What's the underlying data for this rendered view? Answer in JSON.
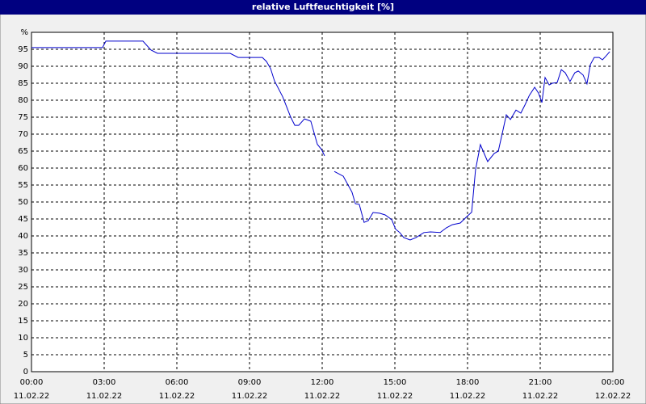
{
  "chart_data": {
    "type": "line",
    "title": "relative Luftfeuchtigkeit [%]",
    "x": [
      0,
      2.93,
      3.07,
      4.6,
      4.93,
      5.2,
      8.2,
      8.53,
      9.53,
      9.7,
      9.87,
      10.03,
      10.37,
      10.7,
      10.87,
      11.03,
      11.27,
      11.53,
      11.8,
      11.97,
      12.1,
      12.3,
      12.5,
      12.87,
      13.23,
      13.37,
      13.53,
      13.73,
      13.9,
      14.1,
      14.37,
      14.6,
      14.87,
      15.03,
      15.2,
      15.37,
      15.63,
      15.87,
      16.2,
      16.47,
      16.87,
      17.13,
      17.37,
      17.7,
      17.97,
      18.17,
      18.33,
      18.53,
      18.83,
      19.1,
      19.27,
      19.47,
      19.6,
      19.77,
      20,
      20.2,
      20.37,
      20.55,
      20.77,
      20.93,
      21.07,
      21.2,
      21.37,
      21.5,
      21.7,
      21.87,
      22.03,
      22.23,
      22.43,
      22.57,
      22.77,
      22.93,
      23.07,
      23.23,
      23.43,
      23.57,
      23.7,
      23.87
    ],
    "series": [
      {
        "color": "#0000cc",
        "values": [
          95.5,
          95.5,
          97.4,
          97.4,
          94.8,
          93.8,
          93.8,
          92.6,
          92.6,
          91.4,
          89.3,
          85.7,
          81,
          75,
          72.6,
          72.6,
          74.5,
          73.8,
          67,
          65.5,
          63.6,
          null,
          59,
          57.6,
          52.9,
          49.5,
          49.3,
          44,
          44.5,
          46.9,
          46.7,
          46.2,
          44.8,
          42,
          41,
          39.5,
          38.8,
          39.5,
          41,
          41.2,
          41,
          42.4,
          43.3,
          43.8,
          45.7,
          47,
          59.5,
          66.9,
          61.9,
          64.3,
          65,
          71.4,
          75.7,
          74.3,
          77.1,
          76.2,
          78.6,
          81.4,
          83.8,
          82.1,
          79.3,
          86.7,
          84.5,
          85,
          85.2,
          89,
          88.1,
          85.5,
          88.1,
          88.6,
          87.4,
          84.8,
          90.5,
          92.6,
          92.6,
          91.9,
          92.9,
          94.3
        ]
      }
    ],
    "xlim": [
      0,
      24
    ],
    "xticks": [
      {
        "value": 0,
        "label": "00:00"
      },
      {
        "value": 3,
        "label": "03:00"
      },
      {
        "value": 6,
        "label": "06:00"
      },
      {
        "value": 9,
        "label": "09:00"
      },
      {
        "value": 12,
        "label": "12:00"
      },
      {
        "value": 15,
        "label": "15:00"
      },
      {
        "value": 18,
        "label": "18:00"
      },
      {
        "value": 21,
        "label": "21:00"
      },
      {
        "value": 24,
        "label": "00:00"
      }
    ],
    "xtick_dates": [
      "11.02.22",
      "11.02.22",
      "11.02.22",
      "11.02.22",
      "11.02.22",
      "11.02.22",
      "11.02.22",
      "11.02.22",
      "12.02.22"
    ],
    "ylim": [
      0,
      100
    ],
    "yticks": [
      0,
      5,
      10,
      15,
      20,
      25,
      30,
      35,
      40,
      45,
      50,
      55,
      60,
      65,
      70,
      75,
      80,
      85,
      90,
      95,
      {
        "value": 100,
        "label": "%"
      }
    ],
    "grid": true
  }
}
